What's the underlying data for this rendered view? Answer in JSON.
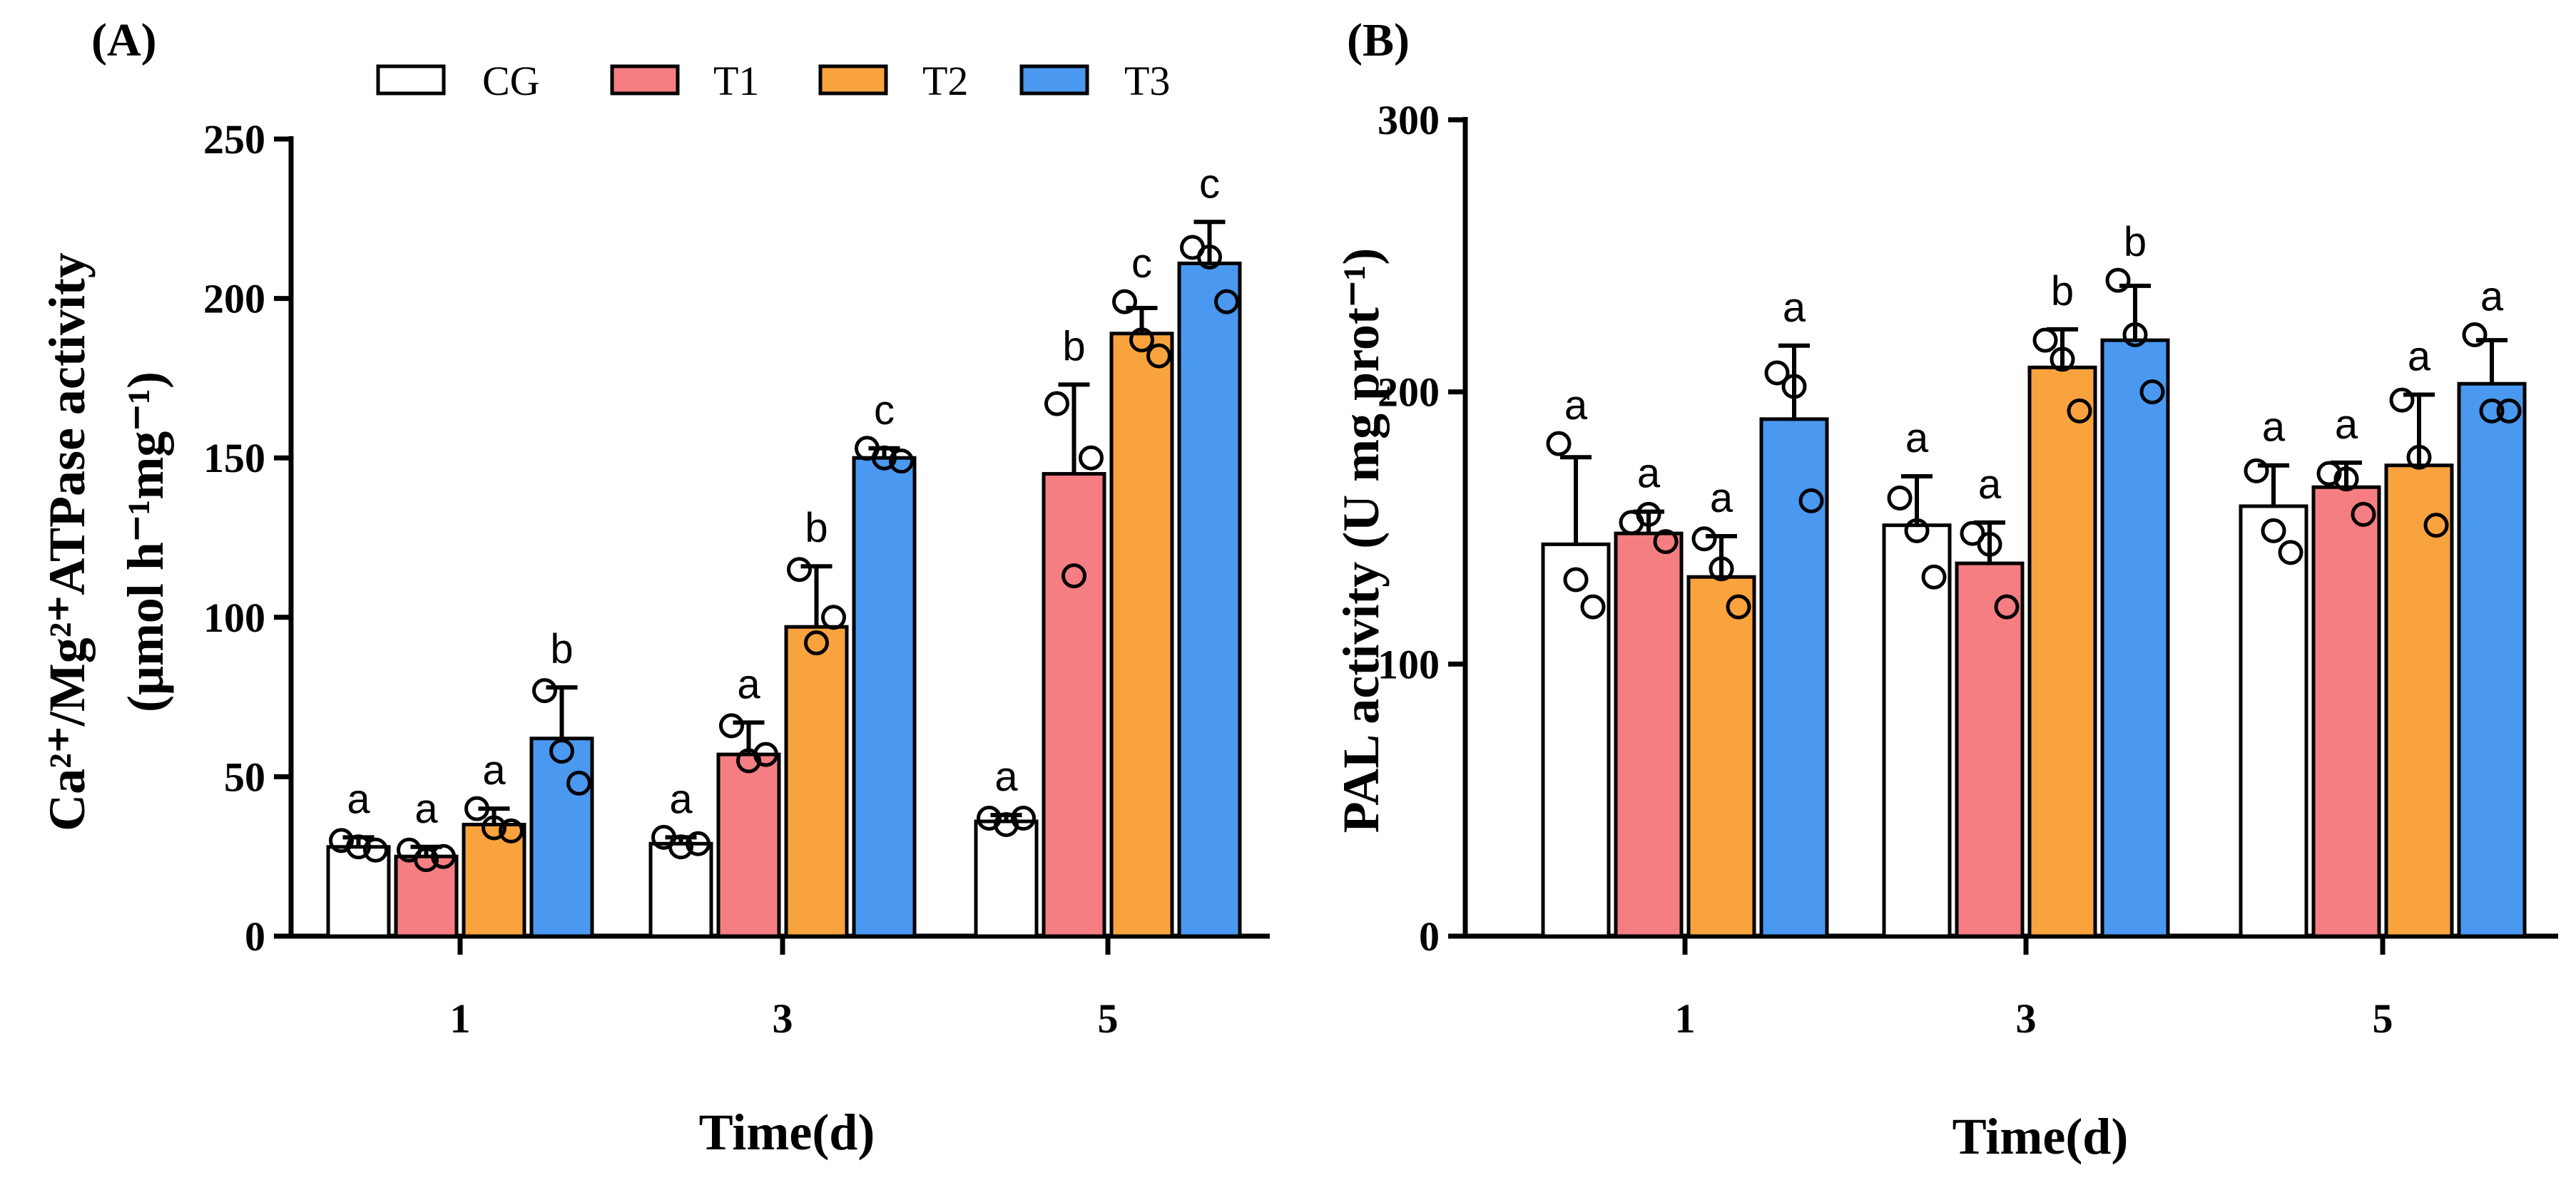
{
  "colors": {
    "CG": "#ffffff",
    "T1": "#f47e82",
    "T2": "#f8a33e",
    "T3": "#4a98ef",
    "ink": "#000000"
  },
  "legend": {
    "items": [
      "CG",
      "T1",
      "T2",
      "T3"
    ],
    "placement": "top-center of panel A"
  },
  "chart_data": [
    {
      "panel": "(A)",
      "type": "bar",
      "ylabel_line1": "Ca²⁺/Mg²⁺ATPase activity",
      "ylabel_line2": "(μmol h⁻¹mg⁻¹)",
      "xlabel": "Time(d)",
      "categories": [
        "1",
        "3",
        "5"
      ],
      "ylim": [
        0,
        250
      ],
      "yticks": [
        "0",
        "50",
        "100",
        "150",
        "200",
        "250"
      ],
      "series": [
        {
          "name": "CG",
          "values": [
            28,
            29,
            36
          ],
          "errors": [
            3,
            2,
            2
          ],
          "points": [
            [
              30,
              28,
              27
            ],
            [
              31,
              28,
              29
            ],
            [
              37,
              35,
              37
            ]
          ],
          "letters": [
            "a",
            "a",
            "a"
          ]
        },
        {
          "name": "T1",
          "values": [
            25,
            57,
            145
          ],
          "errors": [
            3,
            10,
            28
          ],
          "points": [
            [
              27,
              24,
              25
            ],
            [
              66,
              55,
              57
            ],
            [
              167,
              113,
              150
            ]
          ],
          "letters": [
            "a",
            "a",
            "b"
          ]
        },
        {
          "name": "T2",
          "values": [
            35,
            97,
            189
          ],
          "errors": [
            5,
            19,
            8
          ],
          "points": [
            [
              40,
              34,
              33
            ],
            [
              115,
              92,
              100
            ],
            [
              199,
              187,
              182
            ]
          ],
          "letters": [
            "a",
            "b",
            "c"
          ]
        },
        {
          "name": "T3",
          "values": [
            62,
            150,
            211
          ],
          "errors": [
            16,
            3,
            13
          ],
          "points": [
            [
              77,
              58,
              48
            ],
            [
              153,
              150,
              149
            ],
            [
              216,
              213,
              199
            ]
          ],
          "letters": [
            "b",
            "c",
            "c"
          ]
        }
      ]
    },
    {
      "panel": "(B)",
      "type": "bar",
      "ylabel_line1": "PAL activity (U mg prot⁻¹)",
      "xlabel": "Time(d)",
      "categories": [
        "1",
        "3",
        "5"
      ],
      "ylim": [
        0,
        300
      ],
      "yticks": [
        "0",
        "100",
        "200",
        "300"
      ],
      "series": [
        {
          "name": "CG",
          "values": [
            144,
            151,
            158
          ],
          "errors": [
            32,
            18,
            15
          ],
          "points": [
            [
              181,
              131,
              121
            ],
            [
              161,
              149,
              132
            ],
            [
              171,
              149,
              141
            ]
          ],
          "letters": [
            "a",
            "a",
            "a"
          ]
        },
        {
          "name": "T1",
          "values": [
            148,
            137,
            165
          ],
          "errors": [
            8,
            15,
            9
          ],
          "points": [
            [
              152,
              155,
              145
            ],
            [
              148,
              144,
              121
            ],
            [
              170,
              168,
              155
            ]
          ],
          "letters": [
            "a",
            "a",
            "a"
          ]
        },
        {
          "name": "T2",
          "values": [
            132,
            209,
            173
          ],
          "errors": [
            15,
            14,
            26
          ],
          "points": [
            [
              146,
              135,
              121
            ],
            [
              219,
              212,
              193
            ],
            [
              197,
              176,
              151
            ]
          ],
          "letters": [
            "a",
            "b",
            "a"
          ]
        },
        {
          "name": "T3",
          "values": [
            190,
            219,
            203
          ],
          "errors": [
            27,
            20,
            16
          ],
          "points": [
            [
              207,
              202,
              160
            ],
            [
              241,
              221,
              200
            ],
            [
              221,
              193,
              193
            ]
          ],
          "letters": [
            "a",
            "b",
            "a"
          ]
        }
      ]
    }
  ]
}
